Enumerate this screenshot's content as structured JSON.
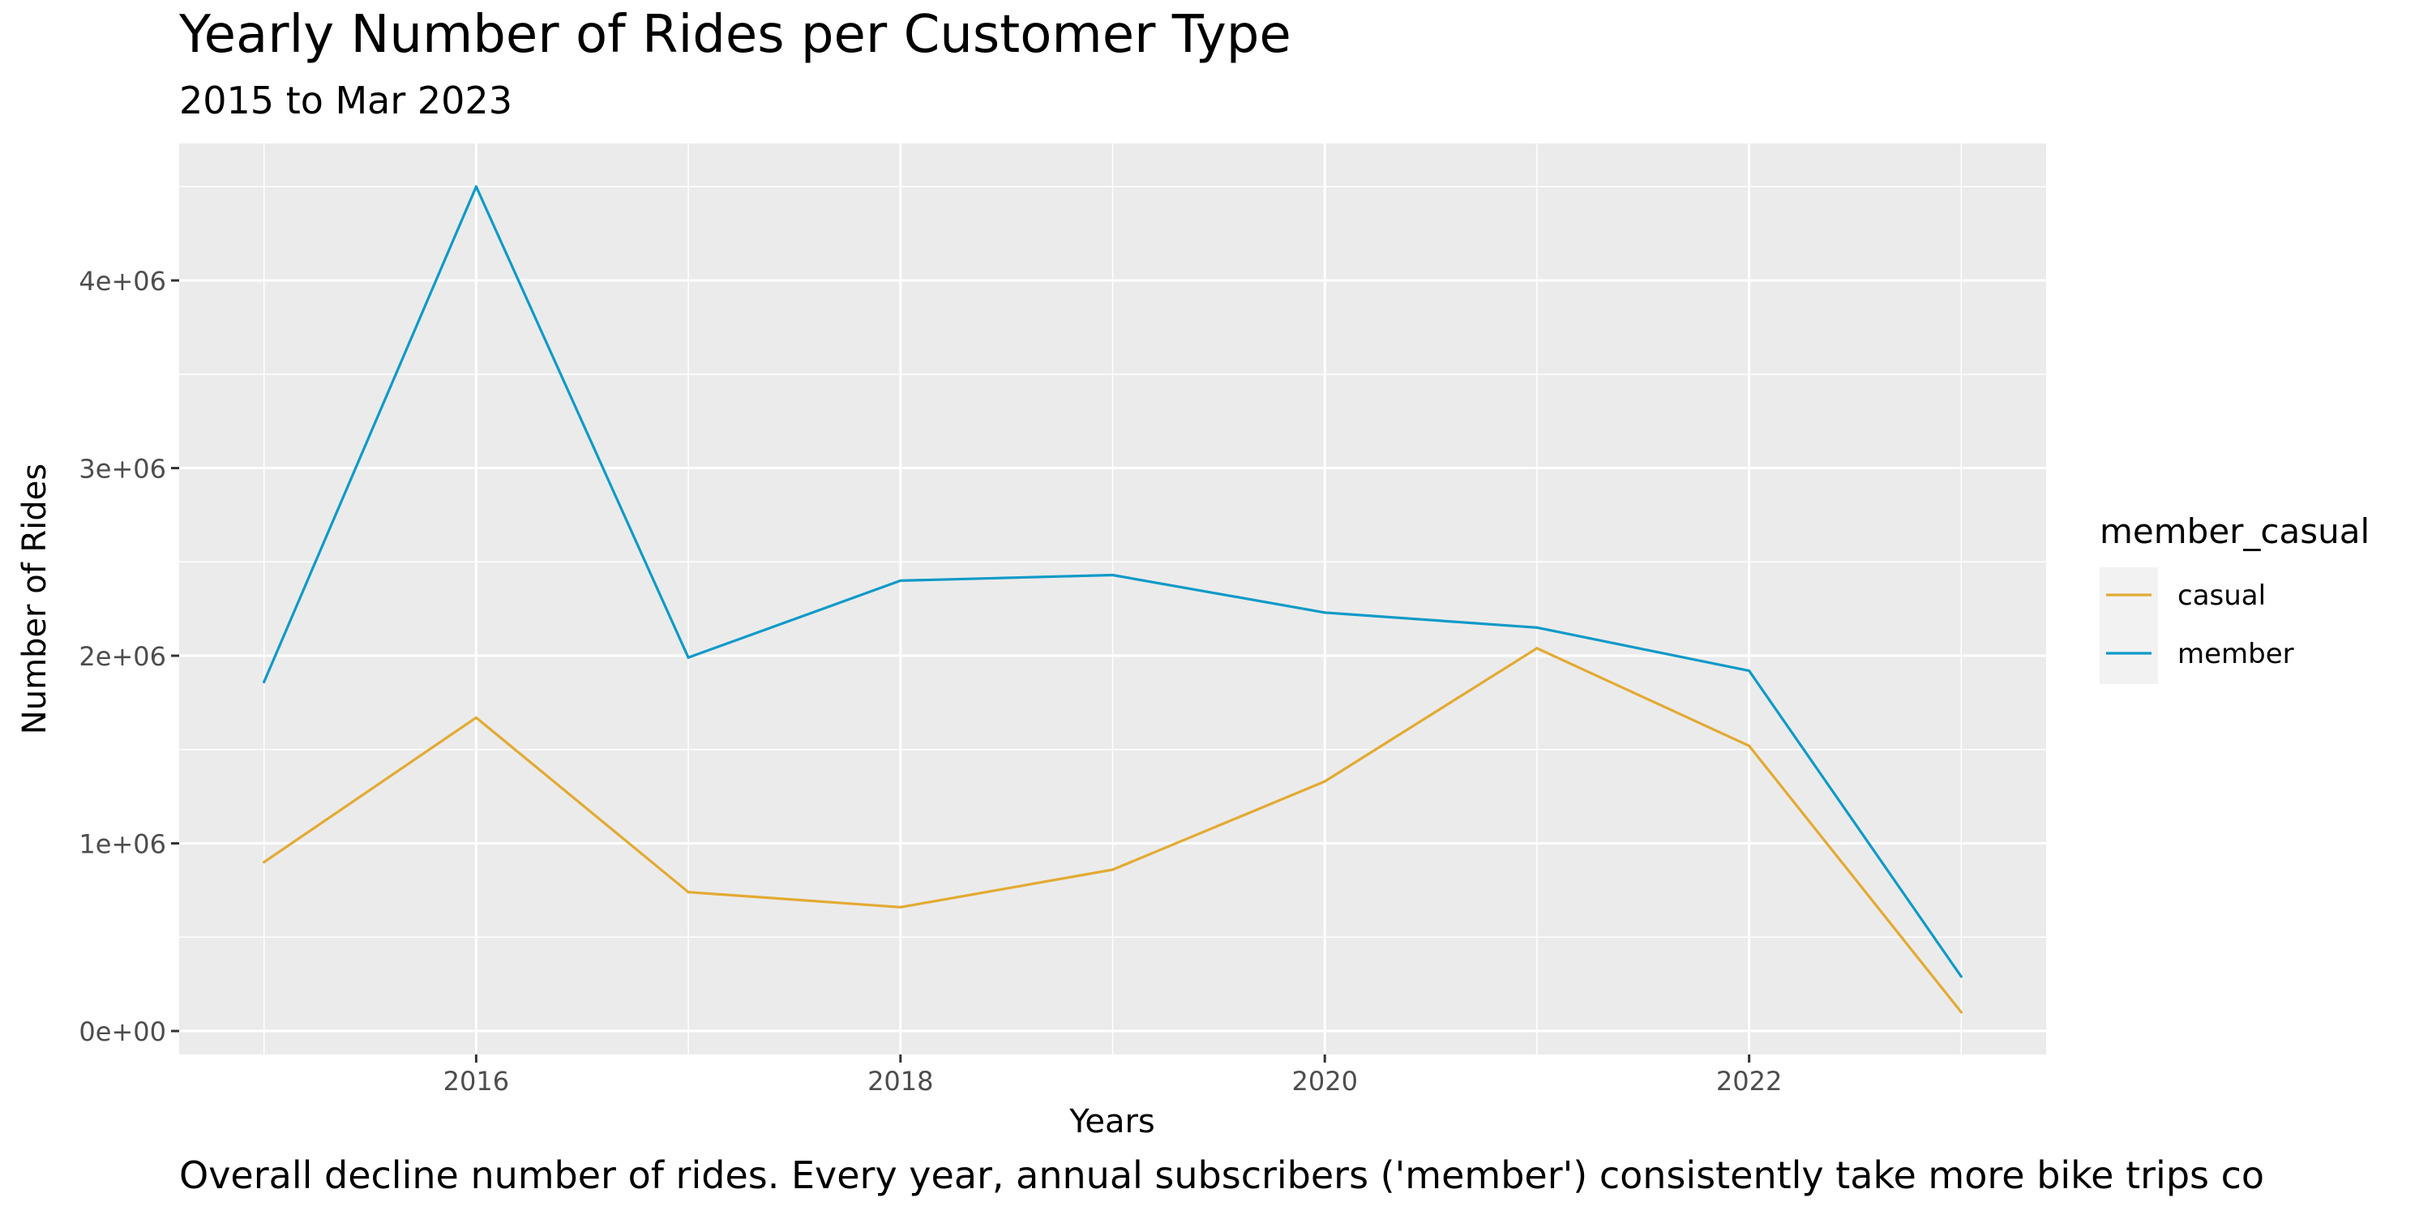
{
  "chart_data": {
    "type": "line",
    "title": "Yearly Number of Rides per Customer Type",
    "subtitle": "2015 to Mar 2023",
    "caption": "Overall decline number of rides. Every year, annual subscribers ('member') consistently take more bike trips co",
    "xlabel": "Years",
    "ylabel": "Number of Rides",
    "xlim": [
      2014.6,
      2023.4
    ],
    "ylim": [
      -125000,
      4730000
    ],
    "x_ticks": [
      2016,
      2018,
      2020,
      2022
    ],
    "x_tick_labels": [
      "2016",
      "2018",
      "2020",
      "2022"
    ],
    "y_ticks": [
      0,
      1000000,
      2000000,
      3000000,
      4000000
    ],
    "y_tick_labels": [
      "0e+00",
      "1e+06",
      "2e+06",
      "3e+06",
      "4e+06"
    ],
    "grid": true,
    "legend": {
      "title": "member_casual",
      "placement": "right"
    },
    "x": [
      2015,
      2016,
      2017,
      2018,
      2019,
      2020,
      2021,
      2022,
      2023
    ],
    "series": [
      {
        "name": "casual",
        "color": "#E3AA32",
        "values": [
          900000,
          1670000,
          740000,
          660000,
          860000,
          1330000,
          2040000,
          1520000,
          100000
        ]
      },
      {
        "name": "member",
        "color": "#0E9AC8",
        "values": [
          1860000,
          4500000,
          1990000,
          2400000,
          2430000,
          2230000,
          2150000,
          1920000,
          290000
        ]
      }
    ]
  }
}
